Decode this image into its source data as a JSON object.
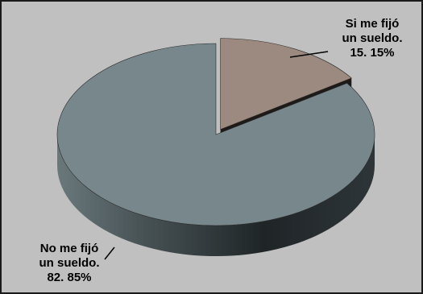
{
  "chart_data": {
    "type": "pie",
    "style": "3d-exploded",
    "slices": [
      {
        "label_lines": [
          "Si me fijó",
          "un sueldo.",
          "15. 15%"
        ],
        "value": 15.15,
        "color": "#9c8a80"
      },
      {
        "label_lines": [
          "No me fijó",
          "un sueldo.",
          "82. 85%"
        ],
        "value": 82.85,
        "color": "#77878c"
      }
    ],
    "background_color": "#c0c0c0",
    "legend": "none",
    "grid": false
  }
}
